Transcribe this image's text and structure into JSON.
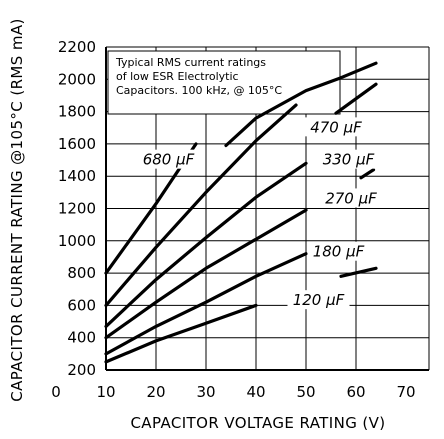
{
  "chart_data": {
    "type": "line",
    "note": [
      "Typical RMS current ratings",
      "of low ESR Electrolytic",
      "Capacitors. 100 kHz, @ 105°C"
    ],
    "xlabel": "CAPACITOR VOLTAGE RATING (V)",
    "ylabel": "CAPACITOR CURRENT RATING @105°C (RMS mA)",
    "xlim": [
      0,
      70
    ],
    "ylim": [
      200,
      2200
    ],
    "xticks": [
      0,
      10,
      20,
      30,
      40,
      50,
      60,
      70
    ],
    "yticks": [
      200,
      400,
      600,
      800,
      1000,
      1200,
      1400,
      1600,
      1800,
      2000,
      2200
    ],
    "grid": true,
    "series": [
      {
        "name": "680 µF",
        "x": [
          10,
          20,
          28
        ],
        "y": [
          800,
          1230,
          1600
        ]
      },
      {
        "name": "470 µF",
        "x": [
          34,
          40,
          50,
          57,
          64
        ],
        "y": [
          1590,
          1760,
          1930,
          2010,
          2100
        ]
      },
      {
        "name": "330 µF",
        "x": [
          10,
          20,
          30,
          40,
          48
        ],
        "y": [
          600,
          960,
          1300,
          1620,
          1840
        ]
      },
      {
        "name": "270 µF",
        "x": [
          10,
          20,
          30,
          40,
          50
        ],
        "y": [
          470,
          760,
          1020,
          1270,
          1480
        ]
      },
      {
        "name": "180 µF",
        "x": [
          10,
          20,
          30,
          40,
          50
        ],
        "y": [
          400,
          620,
          830,
          1010,
          1190
        ]
      },
      {
        "name": "120 µF",
        "x": [
          10,
          20,
          30,
          40,
          50
        ],
        "y": [
          300,
          470,
          620,
          780,
          920
        ]
      },
      {
        "name": "",
        "x": [
          10,
          20,
          30,
          40
        ],
        "y": [
          250,
          380,
          490,
          600
        ]
      }
    ],
    "series_labels": [
      {
        "text": "680 µF",
        "x": 22.5,
        "y": 1490
      },
      {
        "text": "470 µF",
        "x": 56,
        "y": 1690
      },
      {
        "text": "330 µF",
        "x": 58.5,
        "y": 1490
      },
      {
        "text": "270 µF",
        "x": 59,
        "y": 1250
      },
      {
        "text": "180 µF",
        "x": 56.5,
        "y": 920
      },
      {
        "text": "120 µF",
        "x": 52.5,
        "y": 620
      }
    ],
    "extra_segments": [
      [
        [
          56,
          1790
        ],
        [
          64,
          1970
        ]
      ],
      [
        [
          62,
          1490
        ],
        [
          63.5,
          1530
        ]
      ],
      [
        [
          61,
          1390
        ],
        [
          63.5,
          1440
        ]
      ],
      [
        [
          57,
          780
        ],
        [
          64,
          830
        ]
      ]
    ]
  }
}
